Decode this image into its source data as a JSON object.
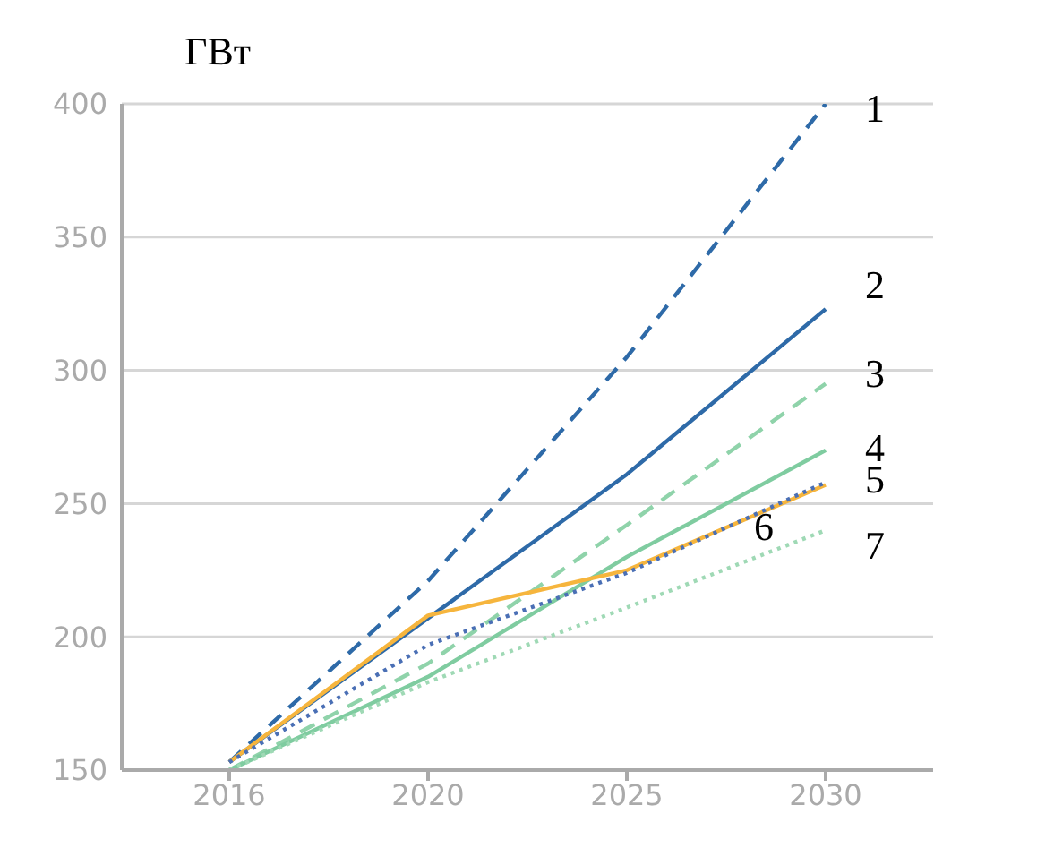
{
  "chart_data": {
    "type": "line",
    "ylabel": "ГВт",
    "categories": [
      "2016",
      "2020",
      "2025",
      "2030"
    ],
    "series": [
      {
        "name": "1",
        "color": "#2e6aa8",
        "line_style": "dashed",
        "values": [
          153,
          221,
          305,
          400
        ]
      },
      {
        "name": "2",
        "color": "#2e6aa8",
        "line_style": "solid",
        "values": [
          153,
          207,
          261,
          323
        ]
      },
      {
        "name": "3",
        "color": "#8fd3aa",
        "line_style": "dashed",
        "values": [
          150,
          190,
          242,
          295
        ]
      },
      {
        "name": "4",
        "color": "#7fcca0",
        "line_style": "solid",
        "values": [
          150,
          185,
          230,
          270
        ]
      },
      {
        "name": "5",
        "color": "#f6b53d",
        "line_style": "solid",
        "values": [
          153,
          208,
          225,
          257
        ]
      },
      {
        "name": "6",
        "color": "#4a6fb5",
        "line_style": "dotted",
        "values": [
          153,
          197,
          224,
          258
        ]
      },
      {
        "name": "7",
        "color": "#9fd9b5",
        "line_style": "dotted",
        "values": [
          150,
          183,
          211,
          240
        ]
      }
    ],
    "ylim": [
      150,
      400
    ],
    "yticks": [
      150,
      200,
      250,
      300,
      350,
      400
    ],
    "grid": "y",
    "legend": false,
    "marker": "none"
  }
}
